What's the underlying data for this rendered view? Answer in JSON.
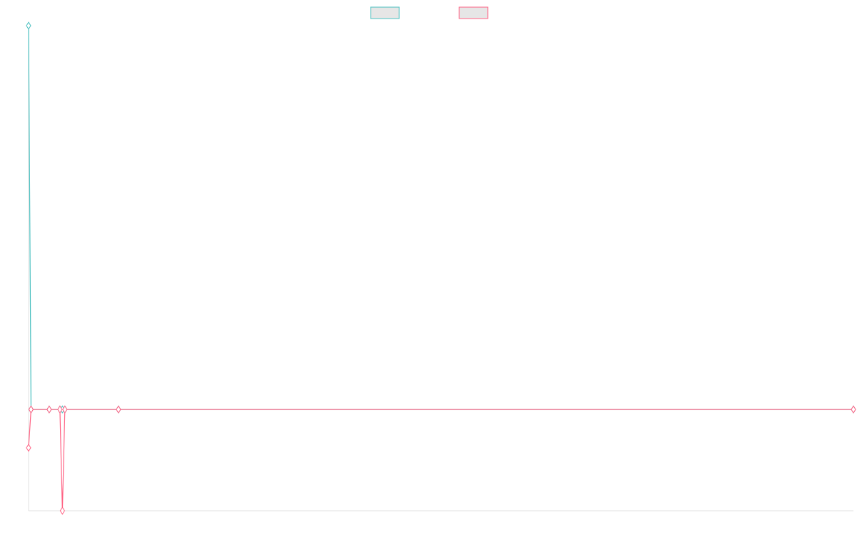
{
  "chart_data": {
    "type": "line",
    "x": [
      0,
      0.3,
      2.5,
      3.8,
      4.1,
      4.4,
      10.9,
      100
    ],
    "xlim": [
      0,
      100
    ],
    "ylim": [
      -26.4,
      100
    ],
    "series": [
      {
        "color": "#4bc0c0",
        "values": [
          100,
          0,
          0,
          0,
          0,
          0,
          0,
          0
        ]
      },
      {
        "color": "#ff6384",
        "values": [
          -10,
          0,
          0,
          0,
          -26.4,
          0,
          0,
          0
        ]
      }
    ],
    "legend": "top"
  }
}
